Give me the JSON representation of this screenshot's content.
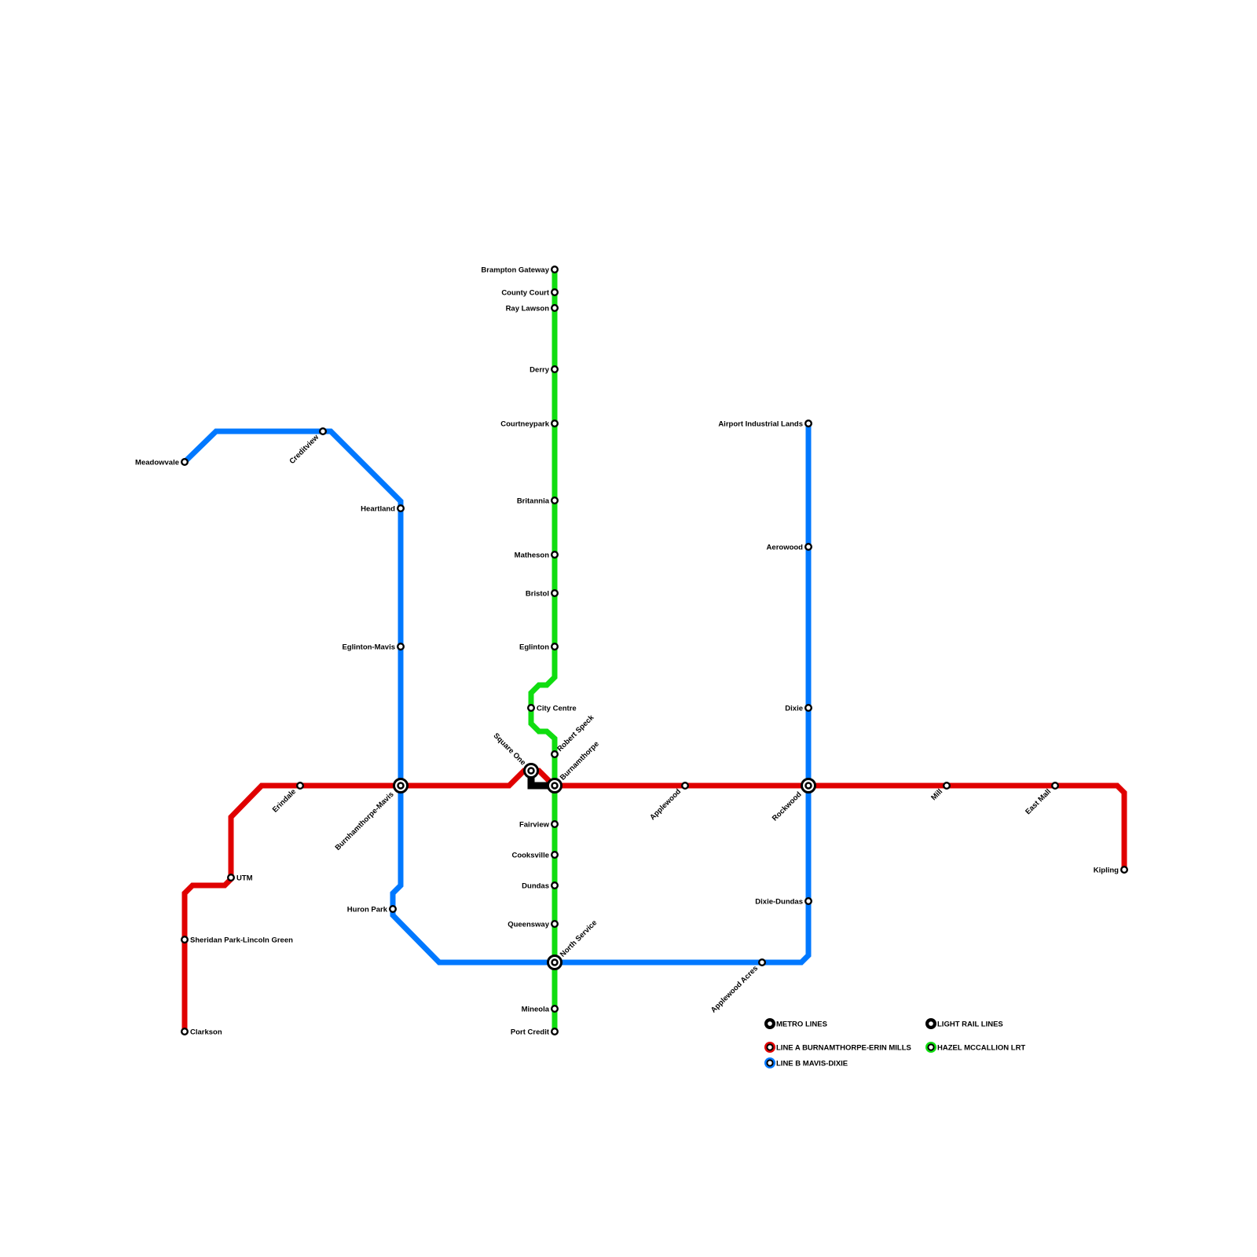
{
  "colors": {
    "line_a": "#e00000",
    "line_b": "#0078ff",
    "hazel": "#10dd10",
    "metro": "#000000"
  },
  "lines": [
    {
      "id": "line_a",
      "name": "LINE A BURNAMTHORPE-ERIN MILLS",
      "color": "#e00000"
    },
    {
      "id": "line_b",
      "name": "LINE B MAVIS-DIXIE",
      "color": "#0078ff"
    },
    {
      "id": "hazel",
      "name": "HAZEL MCCALLION LRT",
      "color": "#10dd10"
    }
  ],
  "legend": {
    "metro": "METRO LINES",
    "light_rail": "LIGHT RAIL LINES",
    "line_a": "LINE A BURNAMTHORPE-ERIN MILLS",
    "line_b": "LINE B MAVIS-DIXIE",
    "hazel": "HAZEL MCCALLION LRT"
  },
  "stations": [
    {
      "name": "Brampton Gateway",
      "line": "hazel"
    },
    {
      "name": "County Court",
      "line": "hazel"
    },
    {
      "name": "Ray Lawson",
      "line": "hazel"
    },
    {
      "name": "Derry",
      "line": "hazel"
    },
    {
      "name": "Courtneypark",
      "line": "hazel"
    },
    {
      "name": "Britannia",
      "line": "hazel"
    },
    {
      "name": "Matheson",
      "line": "hazel"
    },
    {
      "name": "Bristol",
      "line": "hazel"
    },
    {
      "name": "Eglinton",
      "line": "hazel"
    },
    {
      "name": "City Centre",
      "line": "hazel"
    },
    {
      "name": "Robert Speck",
      "line": "hazel"
    },
    {
      "name": "Burnamthorpe",
      "line": "hazel",
      "interchange": true
    },
    {
      "name": "Fairview",
      "line": "hazel"
    },
    {
      "name": "Cooksville",
      "line": "hazel"
    },
    {
      "name": "Dundas",
      "line": "hazel"
    },
    {
      "name": "Queensway",
      "line": "hazel"
    },
    {
      "name": "North Service",
      "line": "hazel",
      "interchange": true
    },
    {
      "name": "Mineola",
      "line": "hazel"
    },
    {
      "name": "Port Credit",
      "line": "hazel"
    },
    {
      "name": "Clarkson",
      "line": "line_a"
    },
    {
      "name": "Sheridan Park-Lincoln Green",
      "line": "line_a"
    },
    {
      "name": "UTM",
      "line": "line_a"
    },
    {
      "name": "Erindale",
      "line": "line_a"
    },
    {
      "name": "Burnhamthorpe-Mavis",
      "line": "line_a",
      "interchange": true
    },
    {
      "name": "Square One",
      "line": "line_a",
      "interchange": true
    },
    {
      "name": "Applewood",
      "line": "line_a"
    },
    {
      "name": "Rockwood",
      "line": "line_a",
      "interchange": true
    },
    {
      "name": "Mill",
      "line": "line_a"
    },
    {
      "name": "East Mall",
      "line": "line_a"
    },
    {
      "name": "Kipling",
      "line": "line_a"
    },
    {
      "name": "Meadowvale",
      "line": "line_b"
    },
    {
      "name": "Creditview",
      "line": "line_b"
    },
    {
      "name": "Heartland",
      "line": "line_b"
    },
    {
      "name": "Eglinton-Mavis",
      "line": "line_b"
    },
    {
      "name": "Huron Park",
      "line": "line_b"
    },
    {
      "name": "Applewood Acres",
      "line": "line_b"
    },
    {
      "name": "Airport Industrial Lands",
      "line": "line_b"
    },
    {
      "name": "Aerowood",
      "line": "line_b"
    },
    {
      "name": "Dixie",
      "line": "line_b"
    },
    {
      "name": "Dixie-Dundas",
      "line": "line_b"
    }
  ]
}
